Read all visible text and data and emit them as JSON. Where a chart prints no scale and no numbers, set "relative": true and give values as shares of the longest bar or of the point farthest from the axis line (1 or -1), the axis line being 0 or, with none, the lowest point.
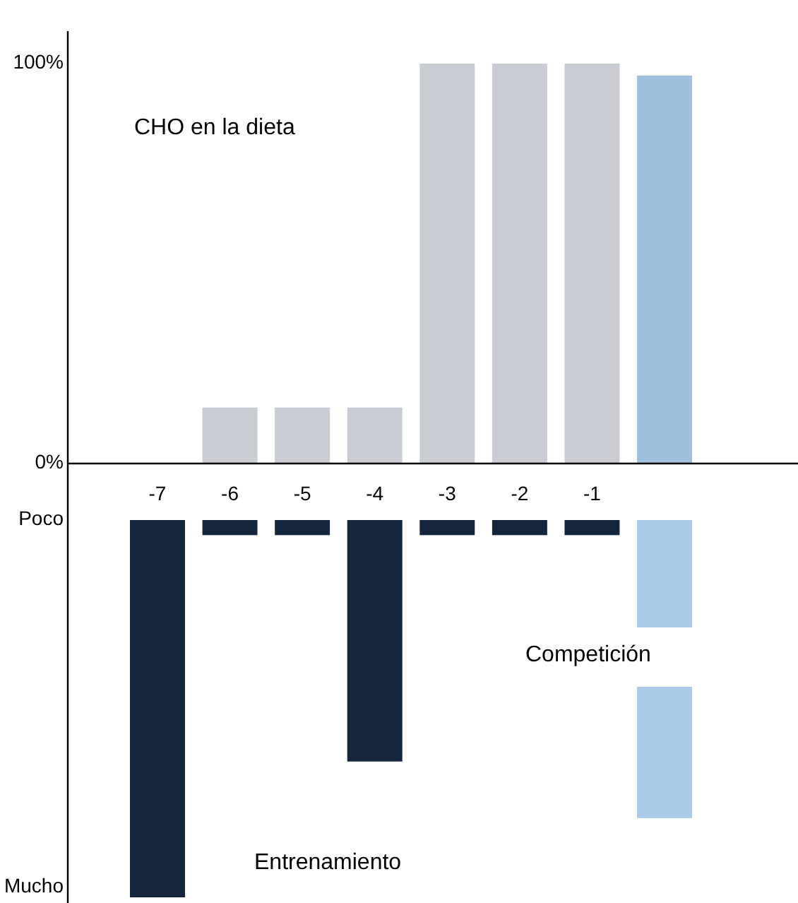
{
  "chart_data": [
    {
      "type": "bar",
      "categories": [
        "-7",
        "-6",
        "-5",
        "-4",
        "-3",
        "-2",
        "-1",
        null
      ],
      "values": [
        0,
        14,
        14,
        14,
        100,
        100,
        100,
        97
      ],
      "colors": [
        "#c9ccd3",
        "#c9ccd3",
        "#c9ccd3",
        "#c9ccd3",
        "#c9ccd3",
        "#c9ccd3",
        "#c9ccd3",
        "#9fc0de"
      ],
      "ylim": [
        0,
        100
      ],
      "yticks": [
        {
          "value": 0,
          "label": "0%"
        },
        {
          "value": 100,
          "label": "100%"
        }
      ],
      "annotations": [
        "CHO en la dieta"
      ]
    },
    {
      "type": "bar",
      "relative": true,
      "categories": [
        null,
        null,
        null,
        null,
        null,
        null,
        null,
        null
      ],
      "values": [
        -1,
        -0.04,
        -0.04,
        -0.64,
        -0.04,
        -0.04,
        -0.04,
        -0.79
      ],
      "colors": [
        "#14253e",
        "#14253e",
        "#14253e",
        "#14253e",
        "#14253e",
        "#14253e",
        "#14253e",
        "#a9c9e8"
      ],
      "annotations": [
        "Poco",
        "Mucho",
        "Competición",
        "Entrenamiento"
      ]
    }
  ]
}
